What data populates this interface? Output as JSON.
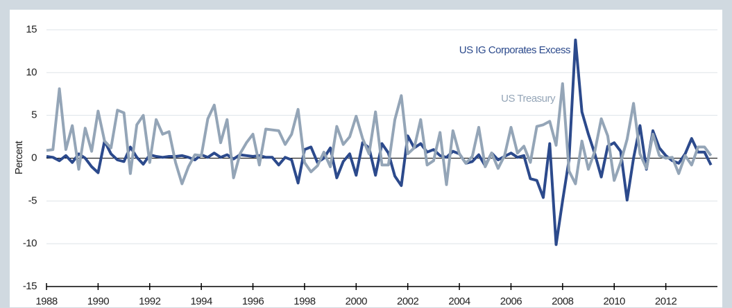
{
  "chart_data": {
    "type": "line",
    "ylabel": "Percent",
    "x": [
      1988,
      1988.25,
      1988.5,
      1988.75,
      1989,
      1989.25,
      1989.5,
      1989.75,
      1990,
      1990.25,
      1990.5,
      1990.75,
      1991,
      1991.25,
      1991.5,
      1991.75,
      1992,
      1992.25,
      1992.5,
      1992.75,
      1993,
      1993.25,
      1993.5,
      1993.75,
      1994,
      1994.25,
      1994.5,
      1994.75,
      1995,
      1995.25,
      1995.5,
      1995.75,
      1996,
      1996.25,
      1996.5,
      1996.75,
      1997,
      1997.25,
      1997.5,
      1997.75,
      1998,
      1998.25,
      1998.5,
      1998.75,
      1999,
      1999.25,
      1999.5,
      1999.75,
      2000,
      2000.25,
      2000.5,
      2000.75,
      2001,
      2001.25,
      2001.5,
      2001.75,
      2002,
      2002.25,
      2002.5,
      2002.75,
      2003,
      2003.25,
      2003.5,
      2003.75,
      2004,
      2004.25,
      2004.5,
      2004.75,
      2005,
      2005.25,
      2005.5,
      2005.75,
      2006,
      2006.25,
      2006.5,
      2006.75,
      2007,
      2007.25,
      2007.5,
      2007.75,
      2008,
      2008.25,
      2008.5,
      2008.75,
      2009,
      2009.25,
      2009.5,
      2009.75,
      2010,
      2010.25,
      2010.5,
      2010.75,
      2011,
      2011.25,
      2011.5,
      2011.75,
      2012,
      2012.25,
      2012.5,
      2012.75,
      2013,
      2013.25,
      2013.5,
      2013.75
    ],
    "series": [
      {
        "name": "US IG Corporates Excess",
        "color": "#2c4a8c",
        "values": [
          0.2,
          0.1,
          -0.3,
          0.3,
          -0.5,
          0.5,
          0.0,
          -1.0,
          -1.7,
          2.0,
          0.5,
          -0.2,
          -0.4,
          1.3,
          0.1,
          -0.7,
          0.4,
          0.2,
          0.1,
          0.2,
          0.2,
          0.3,
          0.1,
          -0.2,
          0.4,
          0.1,
          0.6,
          0.1,
          0.4,
          -0.1,
          0.4,
          0.3,
          0.2,
          0.3,
          0.1,
          0.1,
          -0.8,
          0.1,
          -0.2,
          -2.9,
          1.0,
          1.3,
          -0.5,
          0.0,
          1.2,
          -2.3,
          -0.4,
          0.5,
          -2.0,
          1.8,
          1.2,
          -2.0,
          1.7,
          0.6,
          -2.1,
          -3.2,
          2.6,
          1.2,
          1.7,
          0.7,
          1.0,
          0.3,
          0.1,
          0.8,
          0.5,
          -0.6,
          -0.4,
          0.4,
          -0.9,
          0.6,
          -0.2,
          0.2,
          0.6,
          0.1,
          0.3,
          -2.4,
          -2.6,
          -4.6,
          1.7,
          -10.1,
          -5.0,
          -0.2,
          13.8,
          5.4,
          2.8,
          0.5,
          -2.2,
          1.4,
          1.8,
          0.8,
          -4.9,
          0.0,
          3.8,
          -1.3,
          3.2,
          1.2,
          0.3,
          -0.3,
          -0.6,
          0.5,
          2.3,
          0.7,
          0.7,
          -0.8
        ]
      },
      {
        "name": "US Treasury",
        "color": "#94a5b7",
        "values": [
          0.9,
          1.0,
          8.1,
          1.0,
          3.8,
          -1.3,
          3.5,
          0.8,
          5.5,
          2.0,
          1.2,
          5.6,
          5.3,
          -1.8,
          3.9,
          5.0,
          -0.5,
          4.5,
          2.8,
          3.1,
          -0.5,
          -3.0,
          -1.0,
          0.4,
          0.3,
          4.6,
          6.2,
          1.8,
          4.5,
          -2.3,
          0.5,
          1.8,
          2.8,
          -0.8,
          3.4,
          3.3,
          3.2,
          1.6,
          2.8,
          5.7,
          -0.5,
          -1.6,
          -0.9,
          0.7,
          -1.0,
          3.7,
          1.6,
          2.5,
          4.9,
          2.3,
          0.5,
          5.4,
          -0.8,
          -0.8,
          4.5,
          7.3,
          0.5,
          1.2,
          4.5,
          -0.8,
          -0.3,
          3.0,
          -3.1,
          3.2,
          0.5,
          -0.6,
          0.2,
          3.6,
          -1.0,
          0.6,
          -1.2,
          0.3,
          3.6,
          0.6,
          1.4,
          -0.5,
          3.7,
          3.9,
          4.3,
          1.5,
          8.7,
          -1.5,
          -3.0,
          2.0,
          -1.3,
          0.8,
          4.6,
          2.6,
          -2.6,
          -0.5,
          2.2,
          6.4,
          0.5,
          -1.2,
          2.8,
          0.3,
          0.0,
          0.1,
          -1.8,
          0.3,
          -0.8,
          1.3,
          1.3,
          0.3
        ]
      }
    ],
    "xlim": [
      1988,
      2014
    ],
    "xticks": [
      1988,
      1990,
      1992,
      1994,
      1996,
      1998,
      2000,
      2002,
      2004,
      2006,
      2008,
      2010,
      2012
    ],
    "ylim": [
      -15,
      15
    ],
    "yticks": [
      -15,
      -10,
      -5,
      0,
      5,
      10,
      15
    ],
    "grid": true
  }
}
